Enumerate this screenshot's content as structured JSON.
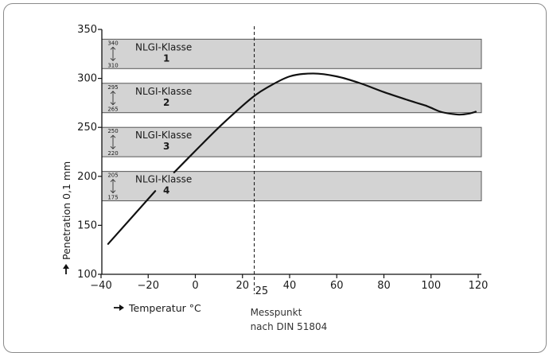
{
  "chart_data": {
    "type": "line",
    "xlabel": "Temperatur °C",
    "ylabel": "Penetration 0,1 mm",
    "xlim": [
      -40,
      120
    ],
    "ylim": [
      100,
      350
    ],
    "x_ticks": [
      -40,
      -20,
      0,
      20,
      40,
      60,
      80,
      100,
      120
    ],
    "y_ticks": [
      100,
      150,
      200,
      250,
      300,
      350
    ],
    "x_tick_labels": [
      "−40",
      "−20",
      "0",
      "20",
      "40",
      "60",
      "80",
      "100",
      "120"
    ],
    "bands": [
      {
        "label": "NLGI-Klasse",
        "number": "1",
        "min": 310,
        "max": 340,
        "min_label": "310",
        "max_label": "340"
      },
      {
        "label": "NLGI-Klasse",
        "number": "2",
        "min": 265,
        "max": 295,
        "min_label": "265",
        "max_label": "295"
      },
      {
        "label": "NLGI-Klasse",
        "number": "3",
        "min": 220,
        "max": 250,
        "min_label": "220",
        "max_label": "250"
      },
      {
        "label": "NLGI-Klasse",
        "number": "4",
        "min": 175,
        "max": 205,
        "min_label": "175",
        "max_label": "205"
      }
    ],
    "reference_line": {
      "x": 25,
      "label": "25",
      "note_line1": "Messpunkt",
      "note_line2": "nach DIN 51804"
    },
    "series": [
      {
        "segments": [
          [
            [
              -37,
              131
            ],
            [
              -17,
              185
            ]
          ],
          [
            [
              -9,
              204
            ],
            [
              0,
              226
            ],
            [
              10,
              250
            ],
            [
              20,
              272
            ],
            [
              25,
              282
            ],
            [
              30,
              290
            ],
            [
              40,
              302
            ],
            [
              50,
              305
            ],
            [
              60,
              302
            ],
            [
              70,
              295
            ],
            [
              80,
              286
            ],
            [
              90,
              278
            ],
            [
              98,
              272
            ]
          ],
          [
            [
              98,
              272
            ],
            [
              100,
              270
            ],
            [
              104,
              266
            ],
            [
              108,
              264
            ],
            [
              112,
              263
            ],
            [
              116,
              264
            ],
            [
              119,
              266
            ]
          ]
        ]
      }
    ],
    "colors": {
      "band_fill": "#d3d3d3",
      "band_stroke": "#555555",
      "line": "#111111",
      "frame": "#8a8a8a"
    }
  }
}
